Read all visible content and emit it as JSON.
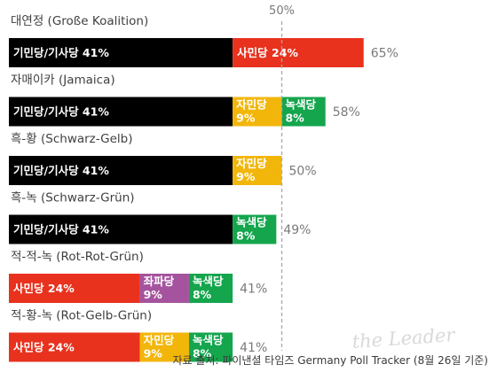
{
  "chart_data": {
    "type": "bar",
    "orientation": "horizontal",
    "stacked": true,
    "categories": [
      "대연정 (Große Koalition)",
      "자매이카 (Jamaica)",
      "흑-황 (Schwarz-Gelb)",
      "흑-녹 (Schwarz-Grün)",
      "적-적-녹 (Rot-Rot-Grün)",
      "적-황-녹 (Rot-Gelb-Grün)"
    ],
    "rows": [
      {
        "segments": [
          {
            "label": "기민당/기사당 41%",
            "value": 41,
            "color": "#000000"
          },
          {
            "label": "사민당 24%",
            "value": 24,
            "color": "#e8321e"
          }
        ],
        "total": "65%"
      },
      {
        "segments": [
          {
            "label": "기민당/기사당 41%",
            "value": 41,
            "color": "#000000"
          },
          {
            "label": "자민당\n9%",
            "value": 9,
            "color": "#f2b60b"
          },
          {
            "label": "녹색당\n8%",
            "value": 8,
            "color": "#14a54d"
          }
        ],
        "total": "58%"
      },
      {
        "segments": [
          {
            "label": "기민당/기사당 41%",
            "value": 41,
            "color": "#000000"
          },
          {
            "label": "자민당\n9%",
            "value": 9,
            "color": "#f2b60b"
          }
        ],
        "total": "50%"
      },
      {
        "segments": [
          {
            "label": "기민당/기사당 41%",
            "value": 41,
            "color": "#000000"
          },
          {
            "label": "녹색당\n8%",
            "value": 8,
            "color": "#14a54d"
          }
        ],
        "total": "49%"
      },
      {
        "segments": [
          {
            "label": "사민당 24%",
            "value": 24,
            "color": "#e8321e"
          },
          {
            "label": "좌파당\n9%",
            "value": 9,
            "color": "#a5539e"
          },
          {
            "label": "녹색당\n8%",
            "value": 8,
            "color": "#14a54d"
          }
        ],
        "total": "41%"
      },
      {
        "segments": [
          {
            "label": "사민당 24%",
            "value": 24,
            "color": "#e8321e"
          },
          {
            "label": "자민당\n9%",
            "value": 9,
            "color": "#f2b60b"
          },
          {
            "label": "녹색당\n8%",
            "value": 8,
            "color": "#14a54d"
          }
        ],
        "total": "41%"
      }
    ],
    "reference_line": {
      "value": 50,
      "label": "50%"
    },
    "xlim": [
      0,
      100
    ],
    "grid": false,
    "legend": "none"
  },
  "source": "자료 출처: 파이낸셜 타임즈 Germany Poll Tracker (8월 26일 기준)",
  "watermark": "the Leader"
}
